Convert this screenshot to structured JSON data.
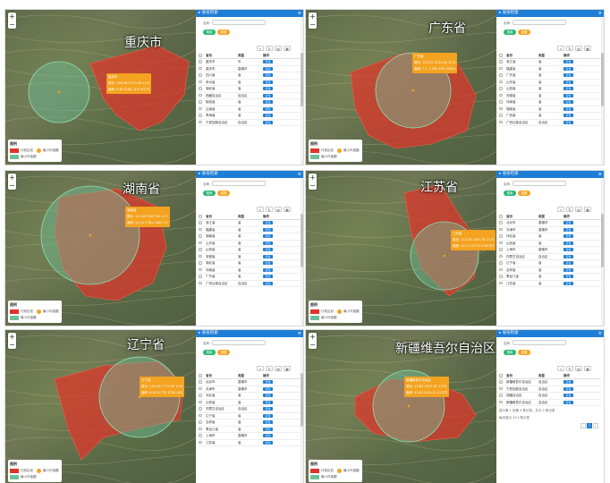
{
  "common": {
    "panel_title": "省份检索",
    "name_label": "名称:",
    "search_btn": "搜索",
    "reset_btn": "重置",
    "tool_icons": [
      "search-icon",
      "refresh-icon",
      "columns-icon",
      "export-icon"
    ],
    "headers": {
      "name": "省份",
      "type": "类型",
      "op": "操作"
    },
    "op_label": "定位",
    "legend_title": "图例",
    "legend_items": [
      "行政区划",
      "最小外接圆",
      "最小外接圆"
    ],
    "colors": {
      "accent": "#1e7ed6",
      "region": "#e0342a",
      "circle": "#6fbf9a",
      "popup": "#f3a320",
      "search": "#2bb673",
      "reset": "#f3a320"
    }
  },
  "tiles": [
    {
      "city": "重庆市",
      "popup": [
        "重庆市",
        "周长: 168.38 1570.28 1176.1001千米",
        "面积: 8.81 8.88 1137.6170.12.0平方千米"
      ],
      "rows": [
        [
          "重庆市",
          "市"
        ],
        [
          "重庆市",
          "直辖市"
        ],
        [
          "四川省",
          "省"
        ],
        [
          "贵州省",
          "省"
        ],
        [
          "湖北省",
          "省"
        ],
        [
          "西藏自治区",
          "自治区"
        ],
        [
          "陕西省",
          "省"
        ],
        [
          "云南省",
          "省"
        ],
        [
          "青海省",
          "省"
        ],
        [
          "宁夏回族自治区",
          "自治区"
        ]
      ]
    },
    {
      "city": "广东省",
      "popup": [
        "广东省",
        "周长: 113.52 2314.00 1178.7001千米",
        "面积: 7.1 1.781-100 1200.8平方千米"
      ],
      "rows": [
        [
          "浙江省",
          "省"
        ],
        [
          "福建省",
          "省"
        ],
        [
          "广东省",
          "省"
        ],
        [
          "山东省",
          "省"
        ],
        [
          "山西省",
          "省"
        ],
        [
          "安徽省",
          "省"
        ],
        [
          "河南省",
          "省"
        ],
        [
          "湖南省",
          "省"
        ],
        [
          "广西省",
          "省"
        ],
        [
          "广西壮族自治区",
          "自治区"
        ]
      ]
    },
    {
      "city": "湖南省",
      "popup": [
        "湖南省",
        "周长: 111.00 1557.91 1177.1800千米",
        "面积: 20.11.7781-1800 1175.1平方千米"
      ],
      "rows": [
        [
          "浙江省",
          "省"
        ],
        [
          "福建省",
          "省"
        ],
        [
          "湖南省",
          "省"
        ],
        [
          "山东省",
          "省"
        ],
        [
          "山西省",
          "省"
        ],
        [
          "安徽省",
          "省"
        ],
        [
          "湖北省",
          "省"
        ],
        [
          "河南省",
          "省"
        ],
        [
          "广东省",
          "省"
        ],
        [
          "广西壮族自治区",
          "自治区"
        ]
      ]
    },
    {
      "city": "江苏省",
      "popup": [
        "江苏省",
        "周长: 113.00 1557.91 1130.0000千米",
        "面积: 20.1 1.7770.1700平方千米"
      ],
      "rows": [
        [
          "北京市",
          "直辖市"
        ],
        [
          "天津市",
          "直辖市"
        ],
        [
          "河北省",
          "省"
        ],
        [
          "山西省",
          "省"
        ],
        [
          "上海市",
          "直辖市"
        ],
        [
          "内蒙古自治区",
          "自治区"
        ],
        [
          "辽宁省",
          "省"
        ],
        [
          "吉林省",
          "省"
        ],
        [
          "黑龙江省",
          "省"
        ],
        [
          "江苏省",
          "省"
        ]
      ]
    },
    {
      "city": "辽宁省",
      "popup": [
        "辽宁省",
        "周长: 113.00 1772.95 1130.0000千米",
        "面积: 8.81 8.770.1700.00平方千米"
      ],
      "rows": [
        [
          "北京市",
          "直辖市"
        ],
        [
          "天津市",
          "直辖市"
        ],
        [
          "河北省",
          "省"
        ],
        [
          "山西省",
          "省"
        ],
        [
          "内蒙古自治区",
          "自治区"
        ],
        [
          "辽宁省",
          "省"
        ],
        [
          "吉林省",
          "省"
        ],
        [
          "黑龙江省",
          "省"
        ],
        [
          "上海市",
          "直辖市"
        ],
        [
          "江苏省",
          "省"
        ]
      ]
    },
    {
      "city": "新疆维吾尔自治区",
      "popup": [
        "新疆维吾尔自治区",
        "周长: 13.82 1557.91 1130.1000千米",
        "面积: 11.81 8.81.11.01平方千米"
      ],
      "rows": [
        [
          "新疆维吾尔自治区",
          "自治区"
        ],
        [
          "宁夏回族自治区",
          "自治区"
        ],
        [
          "西藏自治区",
          "自治区"
        ],
        [
          "新疆维吾尔自治区",
          "自治区"
        ]
      ],
      "footer": "显示第 1 到第 4 条记录，总共 4 条记录",
      "footer2": "每页显示 10 ▾ 条记录",
      "pages": [
        "‹",
        "1",
        "›"
      ]
    }
  ]
}
